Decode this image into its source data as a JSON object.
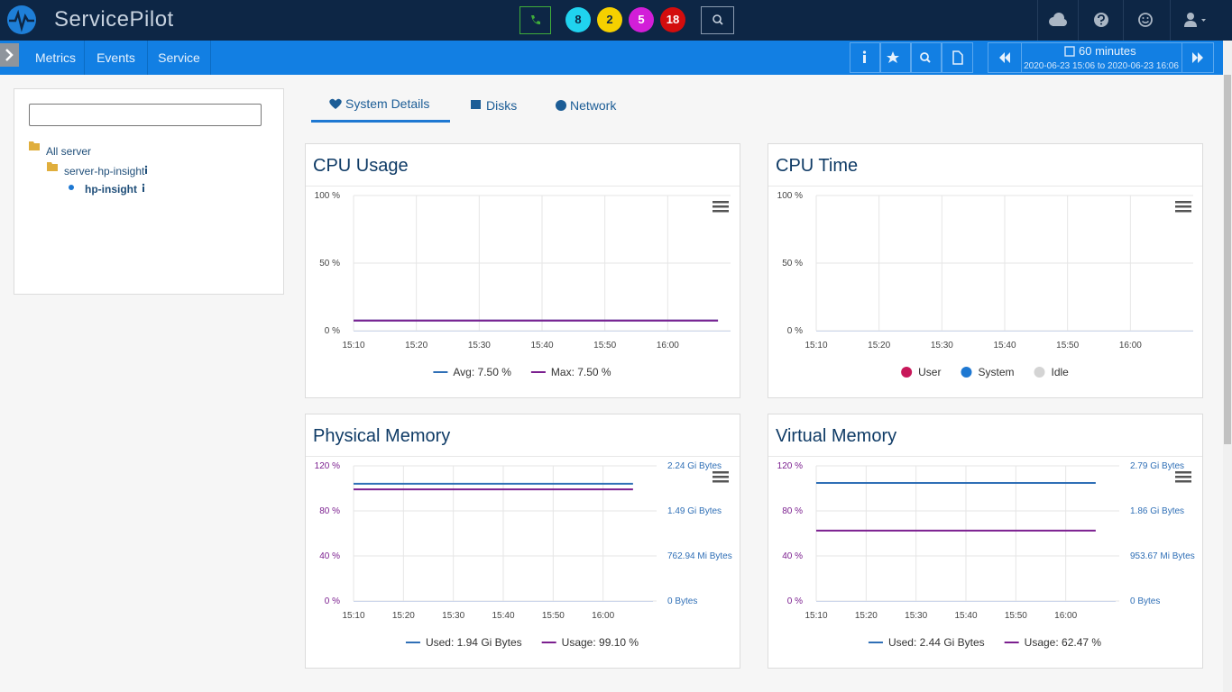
{
  "header": {
    "brand": "ServicePilot",
    "badges": [
      8,
      2,
      5,
      18
    ]
  },
  "nav": {
    "items": [
      "Metrics",
      "Events",
      "Service"
    ],
    "range": {
      "title": "60 minutes",
      "period": "2020-06-23 15:06 to 2020-06-23 16:06"
    }
  },
  "tree": {
    "nodes": [
      "All server",
      "server-hp-insight",
      "hp-insight"
    ]
  },
  "tabs": [
    "System Details",
    "Disks",
    "Network"
  ],
  "chart_data": [
    {
      "type": "line",
      "title": "CPU Usage",
      "x": [
        "15:10",
        "16:08"
      ],
      "xlim": [
        "15:10",
        "16:10"
      ],
      "xticks": [
        "15:10",
        "15:20",
        "15:30",
        "15:40",
        "15:50",
        "16:00"
      ],
      "ylim": [
        0,
        100
      ],
      "yticks": [
        {
          "value": 0,
          "label": "0 %"
        },
        {
          "value": 50,
          "label": "50 %"
        },
        {
          "value": 100,
          "label": "100 %"
        }
      ],
      "grid": true,
      "legend_marker": "line",
      "series": [
        {
          "name": "Avg: 7.50 %",
          "color": "#2f6fb6",
          "values": [
            7.5,
            7.5
          ]
        },
        {
          "name": "Max: 7.50 %",
          "color": "#7b1f8f",
          "values": [
            7.5,
            7.5
          ]
        }
      ]
    },
    {
      "type": "line",
      "title": "CPU Time",
      "x": [],
      "xlim": [
        "15:10",
        "16:10"
      ],
      "xticks": [
        "15:10",
        "15:20",
        "15:30",
        "15:40",
        "15:50",
        "16:00"
      ],
      "ylim": [
        0,
        100
      ],
      "yticks": [
        {
          "value": 0,
          "label": "0 %"
        },
        {
          "value": 50,
          "label": "50 %"
        },
        {
          "value": 100,
          "label": "100 %"
        }
      ],
      "grid": true,
      "legend_marker": "circle",
      "series": [
        {
          "name": "User",
          "color": "#c8185a",
          "values": []
        },
        {
          "name": "System",
          "color": "#1e78d2",
          "values": []
        },
        {
          "name": "Idle",
          "color": "#d4d4d4",
          "values": []
        }
      ]
    },
    {
      "type": "line",
      "title": "Physical Memory",
      "x": [
        "15:10",
        "16:06"
      ],
      "xlim": [
        "15:10",
        "16:10"
      ],
      "xticks": [
        "15:10",
        "15:20",
        "15:30",
        "15:40",
        "15:50",
        "16:00"
      ],
      "ylim": [
        0,
        120
      ],
      "yticks": [
        {
          "value": 0,
          "label": "0 %"
        },
        {
          "value": 40,
          "label": "40 %"
        },
        {
          "value": 80,
          "label": "80 %"
        },
        {
          "value": 120,
          "label": "120 %"
        }
      ],
      "y2lim": [
        0,
        2400000000
      ],
      "y2ticks": [
        {
          "value": 0,
          "label": "0 Bytes"
        },
        {
          "value": 800000000,
          "label": "762.94 Mi Bytes"
        },
        {
          "value": 1600000000,
          "label": "1.49 Gi Bytes"
        },
        {
          "value": 2400000000,
          "label": "2.24 Gi Bytes"
        }
      ],
      "grid": true,
      "legend_marker": "line",
      "series": [
        {
          "name": "Used: 1.94 Gi Bytes",
          "color": "#2f6fb6",
          "axis": "y2",
          "values": [
            2083000000,
            2083000000
          ]
        },
        {
          "name": "Usage: 99.10 %",
          "color": "#7b1f8f",
          "values": [
            99.1,
            99.1
          ]
        }
      ]
    },
    {
      "type": "line",
      "title": "Virtual Memory",
      "x": [
        "15:10",
        "16:06"
      ],
      "xlim": [
        "15:10",
        "16:10"
      ],
      "xticks": [
        "15:10",
        "15:20",
        "15:30",
        "15:40",
        "15:50",
        "16:00"
      ],
      "ylim": [
        0,
        120
      ],
      "yticks": [
        {
          "value": 0,
          "label": "0 %"
        },
        {
          "value": 40,
          "label": "40 %"
        },
        {
          "value": 80,
          "label": "80 %"
        },
        {
          "value": 120,
          "label": "120 %"
        }
      ],
      "y2lim": [
        0,
        3000000000
      ],
      "y2ticks": [
        {
          "value": 0,
          "label": "0 Bytes"
        },
        {
          "value": 1000000000,
          "label": "953.67 Mi Bytes"
        },
        {
          "value": 2000000000,
          "label": "1.86 Gi Bytes"
        },
        {
          "value": 3000000000,
          "label": "2.79 Gi Bytes"
        }
      ],
      "grid": true,
      "legend_marker": "line",
      "series": [
        {
          "name": "Used: 2.44 Gi Bytes",
          "color": "#2f6fb6",
          "axis": "y2",
          "values": [
            2620000000,
            2620000000
          ]
        },
        {
          "name": "Usage: 62.47 %",
          "color": "#7b1f8f",
          "values": [
            62.47,
            62.47
          ]
        }
      ]
    }
  ]
}
